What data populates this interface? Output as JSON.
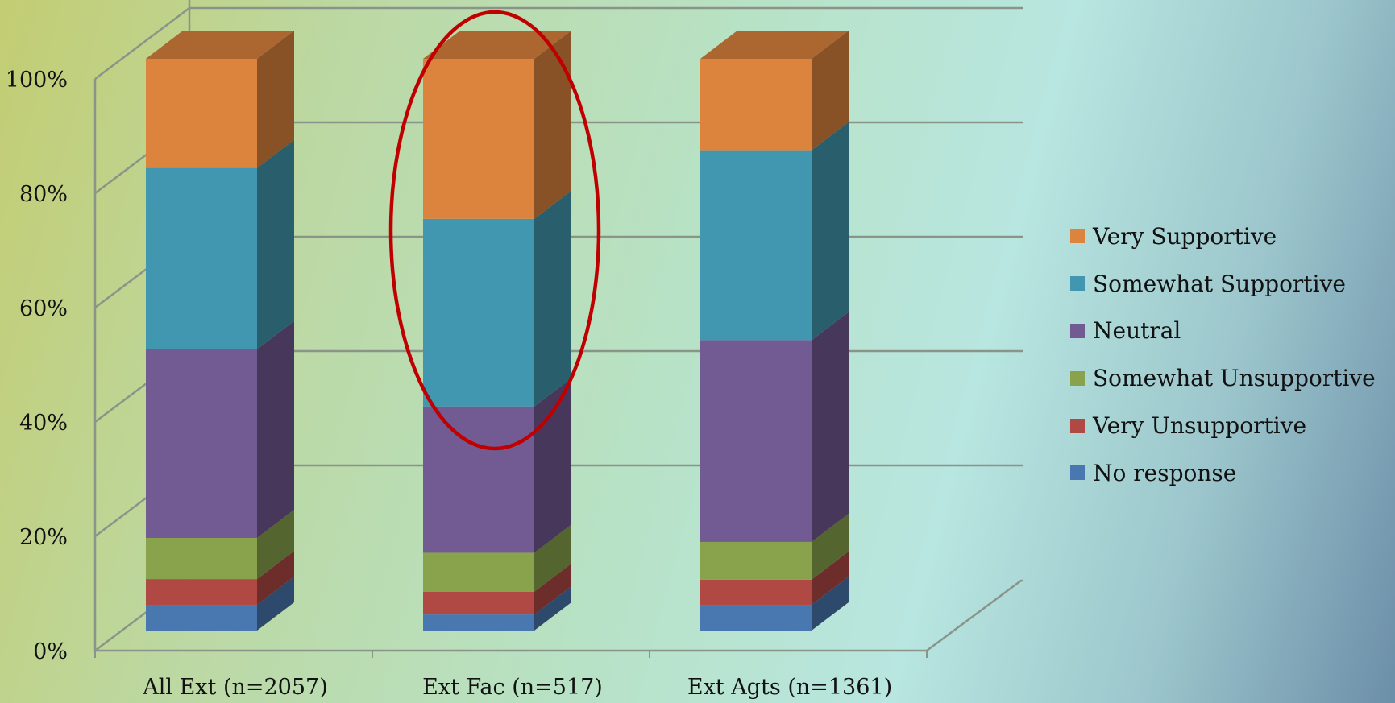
{
  "chart_data": {
    "type": "bar",
    "stacked": true,
    "three_d": true,
    "categories": [
      "All Ext (n=2057)",
      "Ext Fac (n=517)",
      "Ext Agts (n=1361)"
    ],
    "series": [
      {
        "name": "No response",
        "color": "#4977b0",
        "values": [
          4.5,
          2.8,
          4.5
        ]
      },
      {
        "name": "Very Unsupportive",
        "color": "#b04844",
        "values": [
          4.5,
          4.0,
          4.4
        ]
      },
      {
        "name": "Somewhat Unsupportive",
        "color": "#88a34b",
        "values": [
          7.2,
          6.8,
          6.6
        ]
      },
      {
        "name": "Neutral",
        "color": "#725a92",
        "values": [
          33.0,
          25.6,
          35.3
        ]
      },
      {
        "name": "Somewhat Supportive",
        "color": "#4297b0",
        "values": [
          31.7,
          32.8,
          33.2
        ]
      },
      {
        "name": "Very Supportive",
        "color": "#dc843e",
        "values": [
          19.1,
          28.0,
          16.0
        ]
      }
    ],
    "y_ticks": [
      "0%",
      "20%",
      "40%",
      "60%",
      "80%",
      "100%"
    ],
    "ylim": [
      0,
      100
    ],
    "legend_position": "right",
    "grid": true,
    "annotation": {
      "shape": "ellipse",
      "color": "#c00000",
      "target": "Ext Fac (n=517)"
    }
  }
}
